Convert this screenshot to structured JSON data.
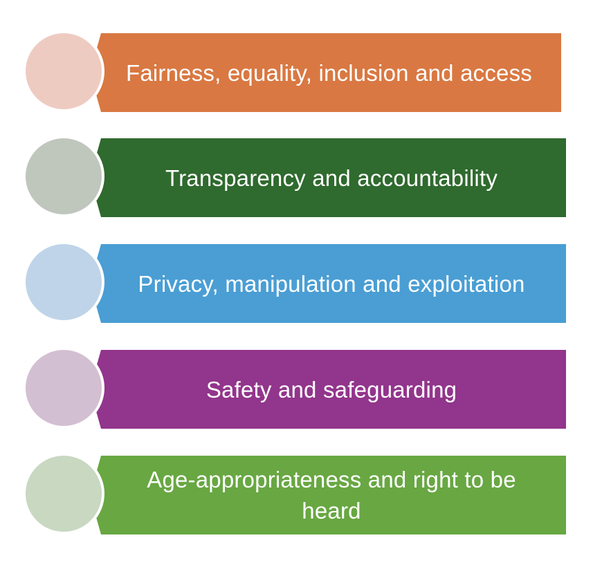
{
  "items": [
    {
      "label": "Fairness, equality, inclusion and access",
      "color": "#d97842",
      "circle_color": "#eecbc1"
    },
    {
      "label": "Transparency and accountability",
      "color": "#2f6a2e",
      "circle_color": "#bfc7bd"
    },
    {
      "label": "Privacy, manipulation and exploitation",
      "color": "#4a9ed4",
      "circle_color": "#bfd4e8"
    },
    {
      "label": "Safety and safeguarding",
      "color": "#92358c",
      "circle_color": "#d3bfd2"
    },
    {
      "label": "Age-appropriateness and right to be heard",
      "color": "#68a742",
      "circle_color": "#c8d8c1"
    }
  ]
}
